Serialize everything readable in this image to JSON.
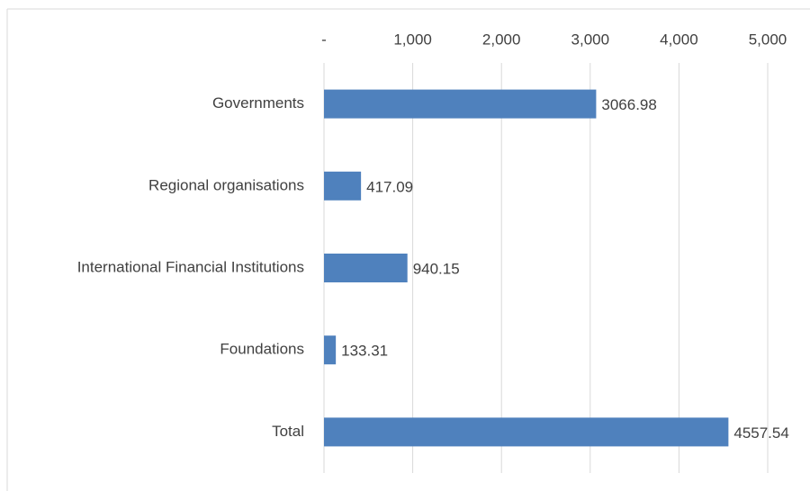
{
  "chart_data": {
    "type": "bar",
    "orientation": "horizontal",
    "categories": [
      "Governments",
      "Regional organisations",
      "International Financial Institutions",
      "Foundations",
      "Total"
    ],
    "values": [
      3066.98,
      417.09,
      940.15,
      133.31,
      4557.54
    ],
    "color": "#4f81bd",
    "xlim": [
      0,
      5000
    ],
    "xticks": [
      {
        "value": 0,
        "label": "-"
      },
      {
        "value": 1000,
        "label": "1,000"
      },
      {
        "value": 2000,
        "label": "2,000"
      },
      {
        "value": 3000,
        "label": "3,000"
      },
      {
        "value": 4000,
        "label": "4,000"
      },
      {
        "value": 5000,
        "label": "5,000"
      }
    ],
    "grid": true
  }
}
